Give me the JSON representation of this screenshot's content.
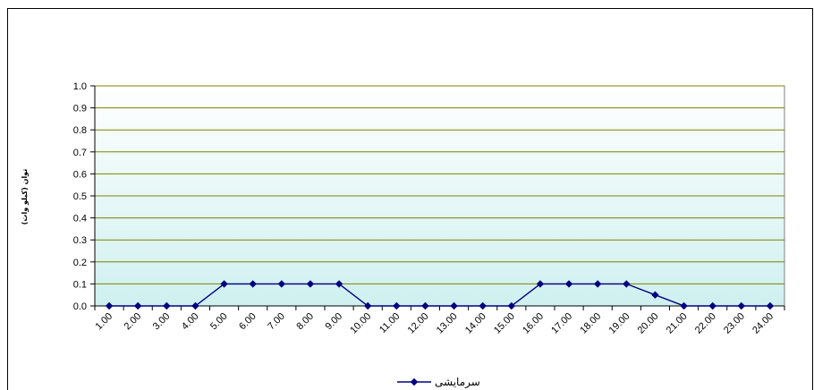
{
  "chart_data": {
    "type": "line",
    "title": "",
    "xlabel": "",
    "ylabel": "توان (كيلو وات)",
    "categories": [
      "1.00",
      "2.00",
      "3.00",
      "4.00",
      "5.00",
      "6.00",
      "7.00",
      "8.00",
      "9.00",
      "10.00",
      "11.00",
      "12.00",
      "13.00",
      "14.00",
      "15.00",
      "16.00",
      "17.00",
      "18.00",
      "19.00",
      "20.00",
      "21.00",
      "22.00",
      "23.00",
      "24.00"
    ],
    "y_ticks": [
      "0.0",
      "0.1",
      "0.2",
      "0.3",
      "0.4",
      "0.5",
      "0.6",
      "0.7",
      "0.8",
      "0.9",
      "1.0"
    ],
    "ylim": [
      0,
      1.0
    ],
    "grid": true,
    "legend_position": "bottom",
    "series": [
      {
        "name": "سرمايشی",
        "color": "#000080",
        "marker": "diamond",
        "values": [
          0,
          0,
          0,
          0,
          0.1,
          0.1,
          0.1,
          0.1,
          0.1,
          0,
          0,
          0,
          0,
          0,
          0,
          0.1,
          0.1,
          0.1,
          0.1,
          0.05,
          0,
          0,
          0,
          0
        ]
      }
    ],
    "colors": {
      "gridline": "#808000",
      "plot_top": "#ffffff",
      "plot_bottom": "#cff0f0"
    }
  }
}
